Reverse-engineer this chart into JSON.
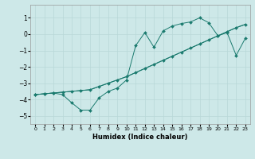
{
  "title": "",
  "xlabel": "Humidex (Indice chaleur)",
  "xlim": [
    -0.5,
    23.5
  ],
  "ylim": [
    -5.5,
    1.8
  ],
  "yticks": [
    -5,
    -4,
    -3,
    -2,
    -1,
    0,
    1
  ],
  "xticks": [
    0,
    1,
    2,
    3,
    4,
    5,
    6,
    7,
    8,
    9,
    10,
    11,
    12,
    13,
    14,
    15,
    16,
    17,
    18,
    19,
    20,
    21,
    22,
    23
  ],
  "bg_color": "#cde8e8",
  "grid_color": "#b8d8d8",
  "line_color": "#1a7a6e",
  "line1_x": [
    0,
    1,
    2,
    3,
    4,
    5,
    6,
    7,
    8,
    9,
    10,
    11,
    12,
    13,
    14,
    15,
    16,
    17,
    18,
    19,
    20,
    21,
    22,
    23
  ],
  "line1_y": [
    -3.7,
    -3.65,
    -3.6,
    -3.55,
    -3.5,
    -3.45,
    -3.4,
    -3.2,
    -3.0,
    -2.8,
    -2.6,
    -2.35,
    -2.1,
    -1.85,
    -1.6,
    -1.35,
    -1.1,
    -0.85,
    -0.6,
    -0.35,
    -0.1,
    0.15,
    0.4,
    0.6
  ],
  "line2_x": [
    0,
    1,
    2,
    3,
    4,
    5,
    6,
    7,
    8,
    9,
    10,
    11,
    12,
    13,
    14,
    15,
    16,
    17,
    18,
    19,
    20,
    21,
    22,
    23
  ],
  "line2_y": [
    -3.7,
    -3.65,
    -3.6,
    -3.7,
    -4.2,
    -4.65,
    -4.65,
    -3.9,
    -3.5,
    -3.3,
    -2.8,
    -0.7,
    0.1,
    -0.8,
    0.2,
    0.5,
    0.65,
    0.75,
    1.0,
    0.7,
    -0.1,
    0.1,
    -1.3,
    -0.25
  ],
  "line3_x": [
    0,
    1,
    2,
    3,
    4,
    5,
    6,
    7,
    8,
    9,
    10,
    11,
    12,
    13,
    14,
    15,
    16,
    17,
    18,
    19,
    20,
    21,
    22,
    23
  ],
  "line3_y": [
    -3.7,
    -3.65,
    -3.6,
    -3.55,
    -3.5,
    -3.45,
    -3.4,
    -3.2,
    -3.0,
    -2.8,
    -2.6,
    -2.35,
    -2.1,
    -1.85,
    -1.6,
    -1.35,
    -1.1,
    -0.85,
    -0.6,
    -0.35,
    -0.1,
    0.15,
    0.4,
    0.6
  ]
}
